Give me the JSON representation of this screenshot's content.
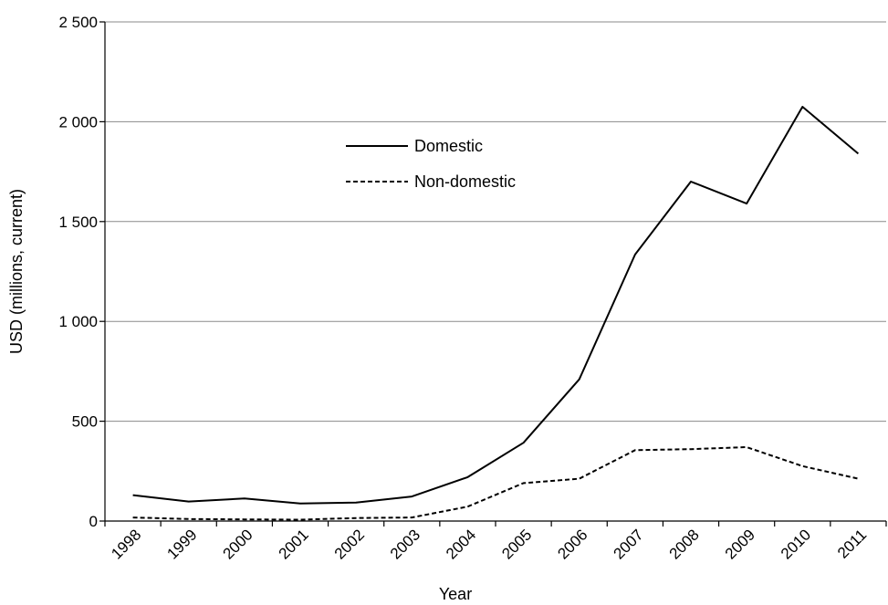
{
  "chart_data": {
    "type": "line",
    "title": "",
    "xlabel": "Year",
    "ylabel": "USD (millions, current)",
    "x": [
      "1998",
      "1999",
      "2000",
      "2001",
      "2002",
      "2003",
      "2004",
      "2005",
      "2006",
      "2007",
      "2008",
      "2009",
      "2010",
      "2011"
    ],
    "ylim": [
      0,
      2500
    ],
    "yticks": [
      0,
      500,
      1000,
      1500,
      2000,
      2500
    ],
    "ytick_labels": [
      "0",
      "500",
      "1 000",
      "1 500",
      "2 000",
      "2 500"
    ],
    "grid": true,
    "legend_position": "upper-center",
    "series": [
      {
        "name": "Domestic",
        "style": "solid",
        "color": "#000000",
        "values": [
          130,
          98,
          113,
          88,
          93,
          123,
          220,
          392,
          710,
          1335,
          1700,
          1590,
          2075,
          1840
        ]
      },
      {
        "name": "Non-domestic",
        "style": "dashed",
        "color": "#000000",
        "values": [
          18,
          10,
          8,
          7,
          15,
          18,
          72,
          190,
          212,
          355,
          360,
          370,
          275,
          212
        ]
      }
    ]
  }
}
